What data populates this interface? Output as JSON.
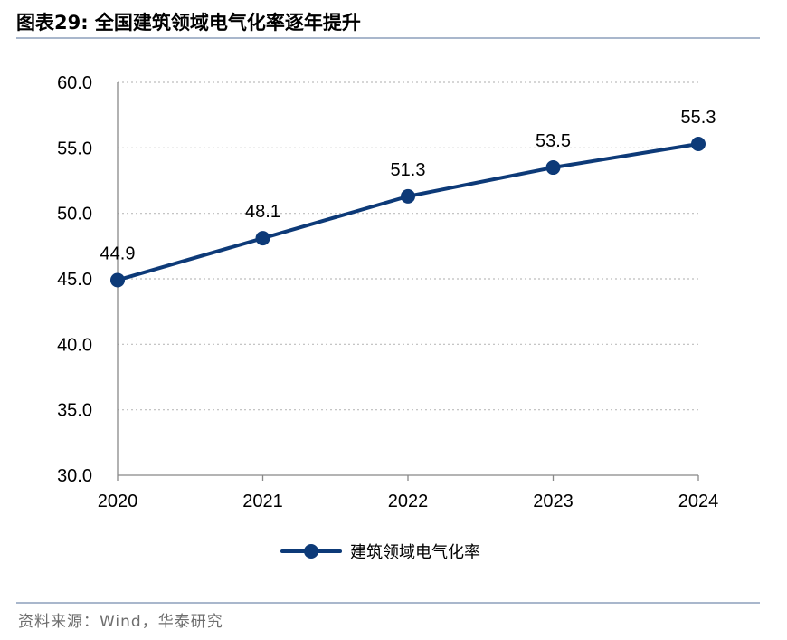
{
  "figure": {
    "title": "图表29:   全国建筑领域电气化率逐年提升",
    "source": "资料来源：Wind，华泰研究"
  },
  "chart_data": {
    "type": "line",
    "x": [
      "2020",
      "2021",
      "2022",
      "2023",
      "2024"
    ],
    "series": [
      {
        "name": "建筑领域电气化率",
        "values": [
          44.9,
          48.1,
          51.3,
          53.5,
          55.3
        ],
        "color": "#0d3a78"
      }
    ],
    "y_ticks": [
      "30.0",
      "35.0",
      "40.0",
      "45.0",
      "50.0",
      "55.0",
      "60.0"
    ],
    "ylim": [
      30,
      60
    ],
    "data_labels": [
      "44.9",
      "48.1",
      "51.3",
      "53.5",
      "55.3"
    ],
    "grid": "horizontal dotted",
    "legend_position": "bottom-center",
    "title": "",
    "xlabel": "",
    "ylabel": ""
  }
}
